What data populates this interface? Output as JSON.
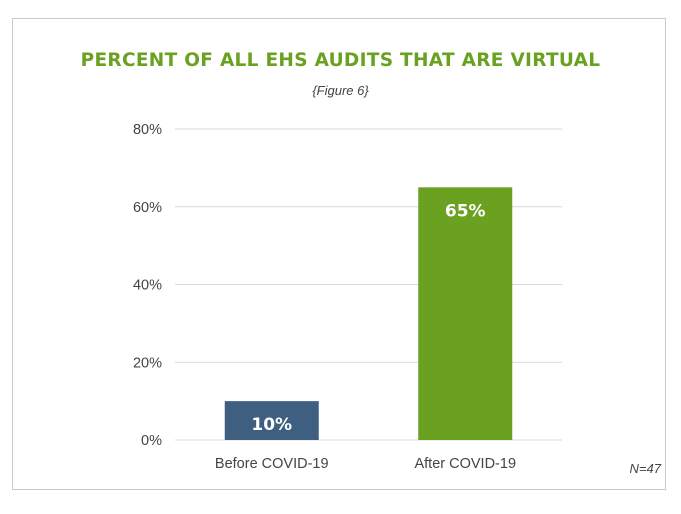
{
  "chart_data": {
    "type": "bar",
    "title": "PERCENT OF ALL EHS AUDITS THAT ARE VIRTUAL",
    "subtitle": "{Figure 6}",
    "categories": [
      "Before COVID-19",
      "After COVID-19"
    ],
    "values": [
      10,
      65
    ],
    "value_labels": [
      "10%",
      "65%"
    ],
    "bar_colors": [
      "#3f5f80",
      "#6aa121"
    ],
    "ylim": [
      0,
      80
    ],
    "yticks": [
      0,
      20,
      40,
      60,
      80
    ],
    "ytick_labels": [
      "0%",
      "20%",
      "40%",
      "60%",
      "80%"
    ],
    "xlabel": "",
    "ylabel": "",
    "grid": true,
    "note": "N=47",
    "colors": {
      "title": "#6aa121",
      "text": "#444444",
      "grid": "#d9d9d9",
      "value_label": "#ffffff"
    }
  }
}
